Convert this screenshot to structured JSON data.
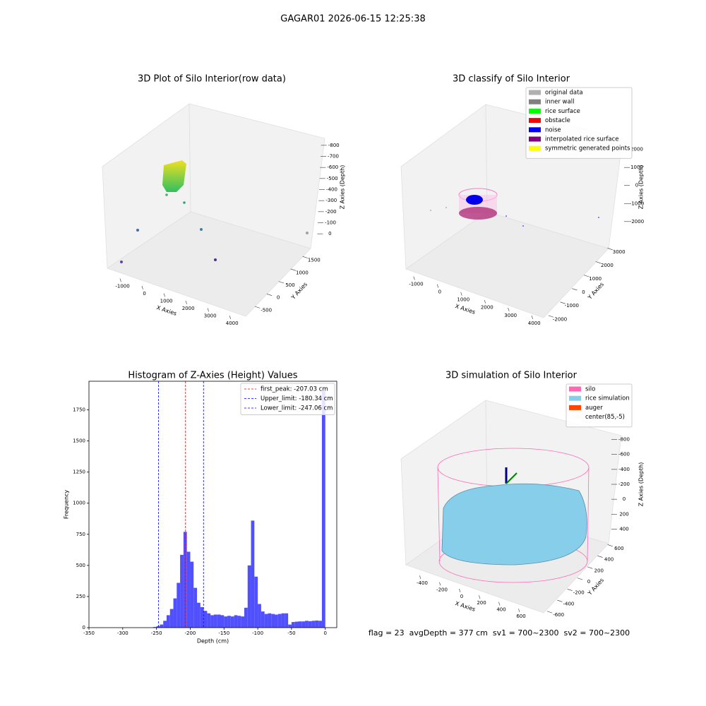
{
  "title": "GAGAR01 2026-06-15 12:25:38",
  "footer": "flag = 23  avgDepth = 377 cm  sv1 = 700~2300  sv2 = 700~2300",
  "chart_data": [
    {
      "type": "scatter3d",
      "title": "3D Plot of Silo Interior(row data)",
      "xlabel": "X Axies",
      "ylabel": "Y Axies",
      "zlabel": "Z Axies (Depth)",
      "xlim": [
        -1500,
        4300
      ],
      "ylim": [
        -800,
        1800
      ],
      "zlim": [
        -850,
        50
      ],
      "xticks": [
        -1000,
        0,
        1000,
        2000,
        3000,
        4000
      ],
      "yticks": [
        -500,
        0,
        500,
        1000,
        1500
      ],
      "zticks": [
        0,
        -100,
        -200,
        -300,
        -400,
        -500,
        -600,
        -700,
        -800
      ]
    },
    {
      "type": "scatter3d",
      "title": "3D classify of Silo Interior",
      "xlabel": "X Axies",
      "ylabel": "Y Axies",
      "zlabel": "Z Axies (Depth)",
      "xlim": [
        -1400,
        4100
      ],
      "ylim": [
        -2300,
        3200
      ],
      "zlim": [
        -2400,
        2300
      ],
      "xticks": [
        -1000,
        0,
        1000,
        2000,
        3000,
        4000
      ],
      "yticks": [
        -2000,
        -1000,
        0,
        1000,
        2000,
        3000
      ],
      "zticks": [
        -2000,
        -1000,
        0,
        1000,
        2000
      ],
      "legend": [
        {
          "name": "original data",
          "color": "#b0b0b0"
        },
        {
          "name": "inner wall",
          "color": "#808080"
        },
        {
          "name": "rice surface",
          "color": "#00ff00"
        },
        {
          "name": "obstacle",
          "color": "#ff0000"
        },
        {
          "name": "noise",
          "color": "#0000ff"
        },
        {
          "name": "interpolated rice surface",
          "color": "#800080"
        },
        {
          "name": "symmetric generated points",
          "color": "#ffff00"
        }
      ]
    },
    {
      "type": "histogram",
      "title": "Histogram of Z-Axies (Height) Values",
      "xlabel": "Depth (cm)",
      "ylabel": "Frequency",
      "xlim": [
        -350,
        17
      ],
      "ylim": [
        0,
        1980
      ],
      "xticks": [
        -350,
        -300,
        -250,
        -200,
        -150,
        -100,
        -50,
        0
      ],
      "yticks": [
        0,
        250,
        500,
        750,
        1000,
        1250,
        1500,
        1750
      ],
      "color": "#5050ff",
      "bins": [
        -255,
        -250,
        -245,
        -240,
        -235,
        -230,
        -225,
        -220,
        -215,
        -210,
        -205,
        -200,
        -195,
        -190,
        -185,
        -180,
        -175,
        -170,
        -165,
        -160,
        -155,
        -150,
        -145,
        -140,
        -135,
        -130,
        -125,
        -120,
        -115,
        -110,
        -105,
        -100,
        -95,
        -90,
        -85,
        -80,
        -75,
        -70,
        -65,
        -60,
        -55,
        -50,
        -45,
        -40,
        -35,
        -30,
        -25,
        -20,
        -15,
        -10,
        -5,
        0
      ],
      "values": [
        5,
        12,
        25,
        55,
        100,
        150,
        235,
        360,
        585,
        770,
        610,
        530,
        320,
        200,
        165,
        135,
        115,
        100,
        105,
        105,
        100,
        90,
        95,
        90,
        100,
        95,
        90,
        160,
        500,
        860,
        410,
        190,
        130,
        110,
        115,
        110,
        105,
        110,
        115,
        115,
        25,
        45,
        48,
        50,
        50,
        55,
        52,
        55,
        57,
        55,
        1900
      ],
      "legend_position": "upper right",
      "lines": [
        {
          "name": "first_peak: -207.03 cm",
          "value": -207.03,
          "color": "#ff0000"
        },
        {
          "name": "Upper_limit: -180.34 cm",
          "value": -180.34,
          "color": "#0000ff"
        },
        {
          "name": "Lower_limit: -247.06 cm",
          "value": -247.06,
          "color": "#0000ff"
        }
      ]
    },
    {
      "type": "surface3d",
      "title": "3D simulation of Silo Interior",
      "xlabel": "X Axies",
      "ylabel": "Y Axies",
      "zlabel": "Z Axies (Depth)",
      "xlim": [
        -550,
        750
      ],
      "ylim": [
        -700,
        700
      ],
      "zlim": [
        -900,
        500
      ],
      "xticks": [
        -400,
        -200,
        0,
        200,
        400,
        600
      ],
      "yticks": [
        -600,
        -400,
        -200,
        0,
        200,
        400,
        600
      ],
      "zticks": [
        400,
        200,
        0,
        -200,
        -400,
        -600,
        -800
      ],
      "legend": [
        {
          "name": "silo",
          "color": "#ff69b4"
        },
        {
          "name": "rice simulation",
          "color": "#87ceeb"
        },
        {
          "name": "auger",
          "color": "#ff4500"
        },
        {
          "name": "center(85,-5)"
        }
      ]
    }
  ]
}
